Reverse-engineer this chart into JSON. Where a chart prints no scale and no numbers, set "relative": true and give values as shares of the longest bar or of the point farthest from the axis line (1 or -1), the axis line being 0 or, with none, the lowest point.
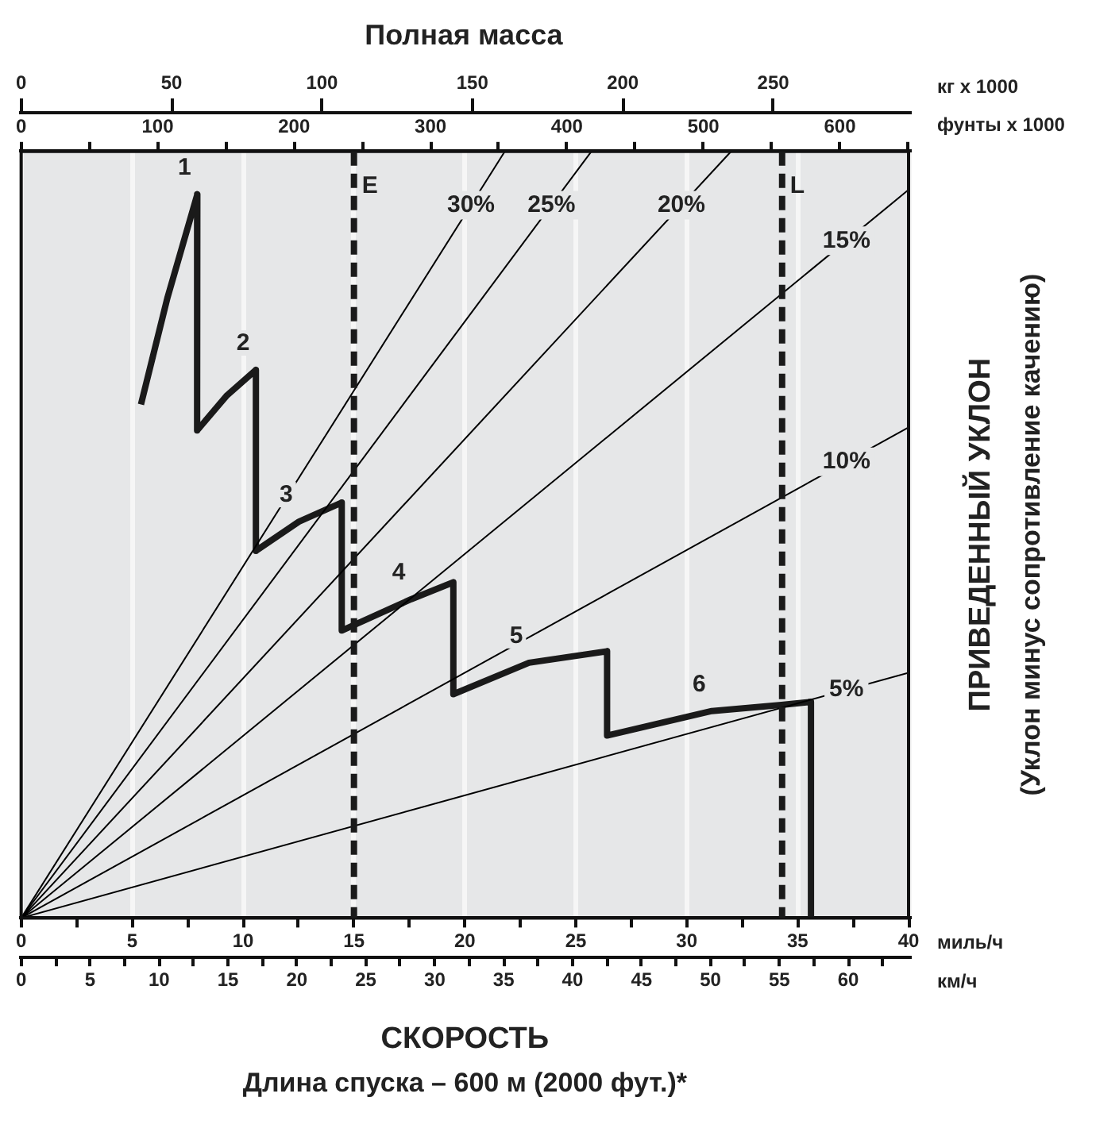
{
  "chart_data": {
    "type": "line",
    "title": "Полная масса",
    "xlabel": "миль/ч",
    "x2label": "кг x 1000",
    "ylabel": "ПРИВЕДЕННЫЙ УКЛОН",
    "relative": true,
    "grid": "x",
    "marker": "none",
    "line_style": "solid",
    "xlim": [
      0,
      40
    ],
    "xticks": [
      0,
      {
        "value": 2.5,
        "label": null
      },
      5,
      {
        "value": 7.5,
        "label": null
      },
      10,
      {
        "value": 12.5,
        "label": null
      },
      15,
      {
        "value": 17.5,
        "label": null
      },
      20,
      {
        "value": 22.5,
        "label": null
      },
      25,
      {
        "value": 27.5,
        "label": null
      },
      30,
      {
        "value": 32.5,
        "label": null
      },
      35,
      {
        "value": 37.5,
        "label": null
      },
      40
    ],
    "x2lim": [
      0,
      295
    ],
    "x2ticks": [
      0,
      50,
      100,
      150,
      200,
      250
    ],
    "series": [
      {
        "name": "30%",
        "color": "#000000",
        "x": [
          0,
          21.8
        ],
        "values": [
          0,
          1
        ]
      },
      {
        "name": "25%",
        "color": "#000000",
        "x": [
          0,
          25.7
        ],
        "values": [
          0,
          1
        ]
      },
      {
        "name": "20%",
        "color": "#000000",
        "x": [
          0,
          32
        ],
        "values": [
          0,
          1
        ]
      },
      {
        "name": "15%",
        "color": "#000000",
        "x": [
          0,
          40
        ],
        "values": [
          0,
          0.95
        ]
      },
      {
        "name": "10%",
        "color": "#000000",
        "x": [
          0,
          40
        ],
        "values": [
          0,
          0.64
        ]
      },
      {
        "name": "5%",
        "color": "#000000",
        "x": [
          0,
          40
        ],
        "values": [
          0,
          0.32
        ]
      },
      {
        "color": "#1a1a1a",
        "x": [
          5.4,
          6.6,
          7.5,
          7.94,
          7.93,
          9.25,
          10.58,
          10.58,
          12.52,
          14.45,
          14.45,
          17.59,
          19.48,
          19.48,
          22.89,
          26.41,
          26.41,
          31.13,
          34.27,
          35.6,
          35.6
        ],
        "values": [
          0.67,
          0.81,
          0.9,
          0.944,
          0.636,
          0.681,
          0.715,
          0.479,
          0.517,
          0.542,
          0.375,
          0.416,
          0.438,
          0.292,
          0.333,
          0.348,
          0.238,
          0.27,
          0.278,
          0.282,
          0
        ]
      }
    ],
    "ref_lines": [
      {
        "axis": "x",
        "value": 15,
        "label": "E",
        "color": "#1a1a1a",
        "line_style": "dashed"
      },
      {
        "axis": "x",
        "value": 34.3,
        "label": "L",
        "color": "#1a1a1a",
        "line_style": "dashed"
      }
    ],
    "annotations": [
      "СКОРОСТЬ",
      "Длина спуска – 600 м (2000 фут.)*",
      "(Уклон минус сопротивление качению)",
      "фунты x 1000",
      "км/ч",
      "0",
      "100",
      "200",
      "300",
      "400",
      "500",
      "600",
      "0",
      "5",
      "10",
      "15",
      "20",
      "25",
      "30",
      "35",
      "40",
      "45",
      "50",
      "55",
      "60",
      {
        "text": "1",
        "x": 7.94,
        "y": 0.944
      },
      {
        "text": "2",
        "x": 10.58,
        "y": 0.715
      },
      {
        "text": "3",
        "x": 12.52,
        "y": 0.517
      },
      {
        "text": "4",
        "x": 17.59,
        "y": 0.416
      },
      {
        "text": "5",
        "x": 22.89,
        "y": 0.333
      },
      {
        "text": "6",
        "x": 31.13,
        "y": 0.27
      }
    ]
  }
}
